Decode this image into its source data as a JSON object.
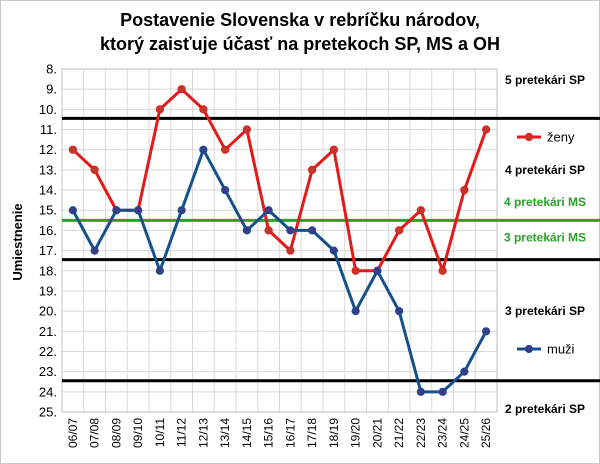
{
  "chart_data": {
    "type": "line",
    "title_line1": "Postavenie Slovenska v rebríčku národov,",
    "title_line2": "ktorý zaisťuje účasť na pretekoch SP, MS a OH",
    "ylabel": "Umiestnenie",
    "xlabel": "",
    "y_inverted": true,
    "ylim": [
      8,
      25
    ],
    "y_ticks": [
      "8.",
      "9.",
      "10.",
      "11.",
      "12.",
      "13.",
      "14.",
      "15.",
      "16.",
      "17.",
      "18.",
      "19.",
      "20.",
      "21.",
      "22.",
      "23.",
      "24.",
      "25."
    ],
    "categories": [
      "06/07",
      "07/08",
      "08/09",
      "09/10",
      "10/11",
      "11/12",
      "12/13",
      "13/14",
      "14/15",
      "15/16",
      "16/17",
      "17/18",
      "18/19",
      "19/20",
      "20/21",
      "21/22",
      "22/23",
      "23/24",
      "24/25",
      "25/26"
    ],
    "series": [
      {
        "name": "ženy",
        "color": "#e31a1c",
        "marker": "#c0392b",
        "values": [
          12,
          13,
          15,
          15,
          10,
          9,
          10,
          12,
          11,
          16,
          17,
          13,
          12,
          18,
          18,
          16,
          15,
          18,
          14,
          11
        ]
      },
      {
        "name": "muži",
        "color": "#15508a",
        "marker": "#3e3a8a",
        "values": [
          15,
          17,
          15,
          15,
          18,
          15,
          12,
          14,
          16,
          15,
          16,
          16,
          17,
          20,
          18,
          20,
          24,
          24,
          23,
          21
        ]
      }
    ],
    "thresholds": [
      {
        "value": 10.45,
        "color": "#000000"
      },
      {
        "value": 15.5,
        "color": "#2ca02c"
      },
      {
        "value": 17.45,
        "color": "#000000"
      },
      {
        "value": 23.45,
        "color": "#000000"
      }
    ],
    "annotations": [
      {
        "text": "5 pretekári SP",
        "color": "#000000",
        "y": 8.55
      },
      {
        "text": "4 pretekári SP",
        "color": "#000000",
        "y": 13.0
      },
      {
        "text": "4 pretekári MS",
        "color": "#2ca02c",
        "y": 14.6
      },
      {
        "text": "3 pretekári MS",
        "color": "#2ca02c",
        "y": 16.35
      },
      {
        "text": "3 pretekári SP",
        "color": "#000000",
        "y": 20.0
      },
      {
        "text": "2 pretekári SP",
        "color": "#000000",
        "y": 24.85
      }
    ],
    "legend_position": "right",
    "grid": true
  }
}
